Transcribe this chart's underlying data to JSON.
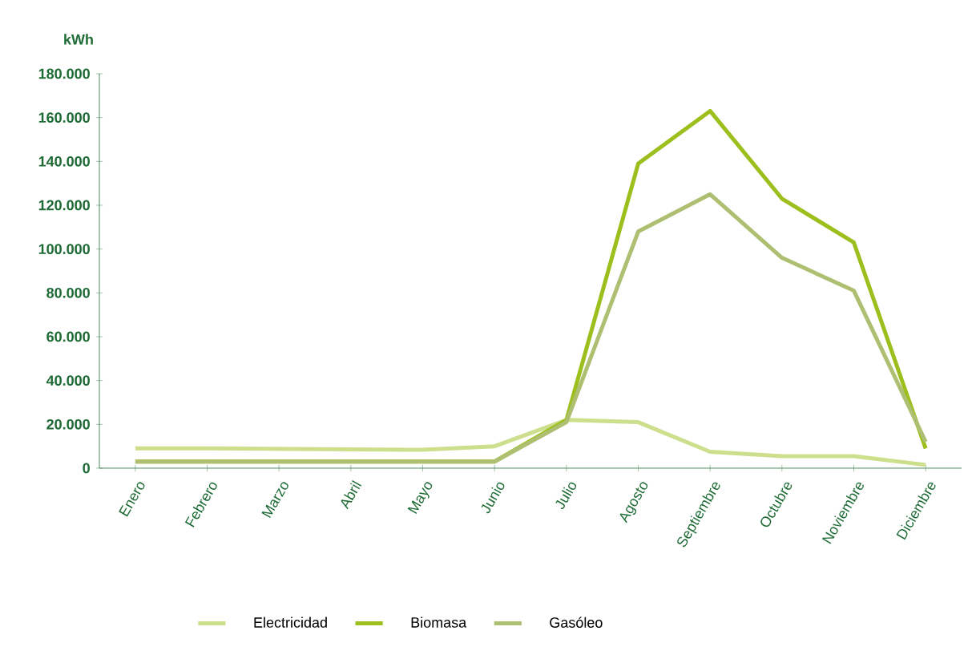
{
  "chart_data": {
    "type": "line",
    "ylabel": "kWh",
    "categories": [
      "Enero",
      "Febrero",
      "Marzo",
      "Abril",
      "Mayo",
      "Junio",
      "Julio",
      "Agosto",
      "Septiembre",
      "Octubre",
      "Noviembre",
      "Diciembre"
    ],
    "series": [
      {
        "name": "Electricidad",
        "color": "#cddf8c",
        "values": [
          9000,
          9000,
          8800,
          8600,
          8400,
          10000,
          22000,
          21000,
          7500,
          5500,
          5500,
          1500
        ]
      },
      {
        "name": "Biomasa",
        "color": "#9dbf1e",
        "values": [
          3000,
          3000,
          3000,
          3000,
          3000,
          3000,
          22000,
          139000,
          163000,
          123000,
          103000,
          9000
        ]
      },
      {
        "name": "Gasóleo",
        "color": "#aebf72",
        "values": [
          3000,
          3000,
          3000,
          3000,
          3000,
          3000,
          21000,
          108000,
          125000,
          96000,
          81000,
          12000
        ]
      }
    ],
    "ylim": [
      0,
      180000
    ],
    "yticks": [
      0,
      {
        "value": 20000,
        "label": "20.000"
      },
      {
        "value": 40000,
        "label": "40.000"
      },
      {
        "value": 60000,
        "label": "60.000"
      },
      {
        "value": 80000,
        "label": "80.000"
      },
      {
        "value": 100000,
        "label": "100.000"
      },
      {
        "value": 120000,
        "label": "120.000"
      },
      {
        "value": 140000,
        "label": "140.000"
      },
      {
        "value": 160000,
        "label": "160.000"
      },
      {
        "value": 180000,
        "label": "180.000"
      }
    ],
    "grid": false,
    "legend": "bottom",
    "marker": "none",
    "line_style": "solid"
  }
}
